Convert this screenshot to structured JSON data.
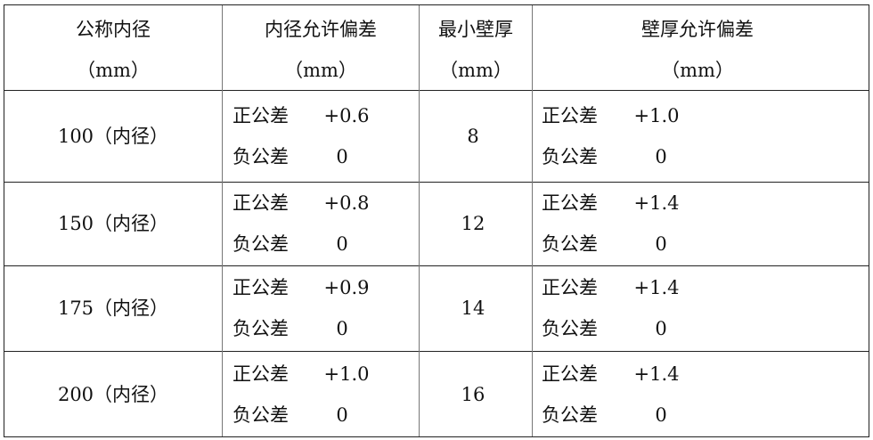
{
  "header": {
    "columns": [
      {
        "title": "公称内径",
        "unit": "（mm）"
      },
      {
        "title": "内径允许偏差",
        "unit": "（mm）"
      },
      {
        "title": "最小壁厚",
        "unit": "（mm）"
      },
      {
        "title": "壁厚允许偏差",
        "unit": "（mm）"
      }
    ]
  },
  "labels": {
    "positive": "正公差",
    "negative": "负公差"
  },
  "rows": [
    {
      "diameter": "100（内径）",
      "id_pos": "+0.6",
      "id_neg": "0",
      "wall": "8",
      "wall_pos": "+1.0",
      "wall_neg": "0"
    },
    {
      "diameter": "150（内径）",
      "id_pos": "+0.8",
      "id_neg": "0",
      "wall": "12",
      "wall_pos": "+1.4",
      "wall_neg": "0"
    },
    {
      "diameter": "175（内径）",
      "id_pos": "+0.9",
      "id_neg": "0",
      "wall": "14",
      "wall_pos": "+1.4",
      "wall_neg": "0"
    },
    {
      "diameter": "200（内径）",
      "id_pos": "+1.0",
      "id_neg": "0",
      "wall": "16",
      "wall_pos": "+1.4",
      "wall_neg": "0"
    }
  ]
}
